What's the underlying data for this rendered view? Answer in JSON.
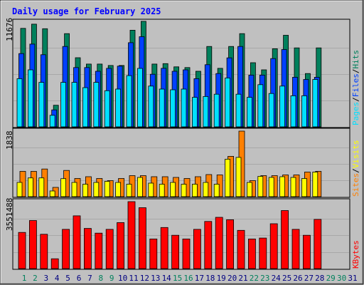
{
  "title": "Daily usage for February 2025",
  "days_in_month": 31,
  "max_labels": {
    "hits": "11676",
    "visits": "1838",
    "kbytes": "3551488"
  },
  "legend": {
    "pages": "Pages",
    "files": "Files",
    "hits": "Hits",
    "sites": "Sites",
    "visits": "Visits",
    "kbytes": "KBytes",
    "sep": "/"
  },
  "colors": {
    "background": "#c0c0c0",
    "title": "#0000ff",
    "hits": "#00805c",
    "files": "#0040ff",
    "pages": "#00e0ff",
    "visits": "#ff8000",
    "sites": "#ffff00",
    "kbytes": "#ff0000",
    "weekend_label": "#00805c",
    "weekday_label": "#000080"
  },
  "chart_data": [
    {
      "type": "bar",
      "name": "hits-files-pages",
      "x": [
        1,
        2,
        3,
        4,
        5,
        6,
        7,
        8,
        9,
        10,
        11,
        12,
        13,
        14,
        15,
        16,
        17,
        18,
        19,
        20,
        21,
        22,
        23,
        24,
        25,
        26,
        27,
        28
      ],
      "ylim": [
        0,
        11676
      ],
      "series": [
        {
          "name": "Hits",
          "values": [
            10900,
            11370,
            10860,
            2390,
            10320,
            7650,
            6950,
            6950,
            6790,
            6790,
            10700,
            11680,
            6950,
            7000,
            6640,
            6560,
            6150,
            8900,
            6480,
            8900,
            10320,
            7100,
            6310,
            8650,
            10140,
            8740,
            5900,
            8740
          ]
        },
        {
          "name": "Files",
          "values": [
            8110,
            9160,
            7980,
            1880,
            8900,
            6560,
            6560,
            6150,
            6480,
            6720,
            9320,
            9980,
            5820,
            6480,
            6150,
            6310,
            5330,
            6880,
            5900,
            7640,
            8900,
            5730,
            5730,
            7560,
            8560,
            5490,
            5250,
            5490
          ]
        },
        {
          "name": "Pages",
          "values": [
            5330,
            6310,
            4920,
            1280,
            4920,
            4920,
            4340,
            4920,
            4000,
            4180,
            5670,
            6470,
            4510,
            4180,
            4100,
            4180,
            3270,
            3360,
            3610,
            5410,
            3610,
            3270,
            4670,
            3690,
            4510,
            3440,
            3440,
            5250
          ]
        }
      ]
    },
    {
      "type": "bar",
      "name": "visits-sites",
      "x": [
        1,
        2,
        3,
        4,
        5,
        6,
        7,
        8,
        9,
        10,
        11,
        12,
        13,
        14,
        15,
        16,
        17,
        18,
        19,
        20,
        21,
        22,
        23,
        24,
        25,
        26,
        27,
        28
      ],
      "ylim": [
        0,
        1838
      ],
      "series": [
        {
          "name": "Visits",
          "values": [
            710,
            710,
            775,
            260,
            735,
            510,
            560,
            510,
            450,
            510,
            590,
            590,
            560,
            560,
            540,
            510,
            560,
            620,
            610,
            1130,
            1838,
            450,
            590,
            590,
            610,
            610,
            690,
            710
          ]
        },
        {
          "name": "Sites",
          "values": [
            400,
            525,
            525,
            160,
            505,
            400,
            350,
            400,
            430,
            400,
            350,
            540,
            380,
            350,
            400,
            350,
            350,
            400,
            350,
            1050,
            1100,
            400,
            570,
            540,
            560,
            540,
            510,
            690
          ]
        }
      ]
    },
    {
      "type": "bar",
      "name": "kbytes",
      "x": [
        1,
        2,
        3,
        4,
        5,
        6,
        7,
        8,
        9,
        10,
        11,
        12,
        13,
        14,
        15,
        16,
        17,
        18,
        19,
        20,
        21,
        22,
        23,
        24,
        25,
        26,
        27,
        28
      ],
      "ylim": [
        0,
        3551488
      ],
      "series": [
        {
          "name": "KBytes",
          "values": [
            1920000,
            2550000,
            1820000,
            520000,
            2080000,
            2800000,
            2130000,
            1880000,
            2080000,
            2440000,
            3551488,
            3230000,
            1570000,
            2180000,
            1770000,
            1570000,
            2080000,
            2500000,
            2720000,
            2590000,
            2030000,
            1570000,
            1620000,
            2380000,
            3080000,
            2080000,
            1770000,
            2610000
          ]
        }
      ]
    }
  ]
}
